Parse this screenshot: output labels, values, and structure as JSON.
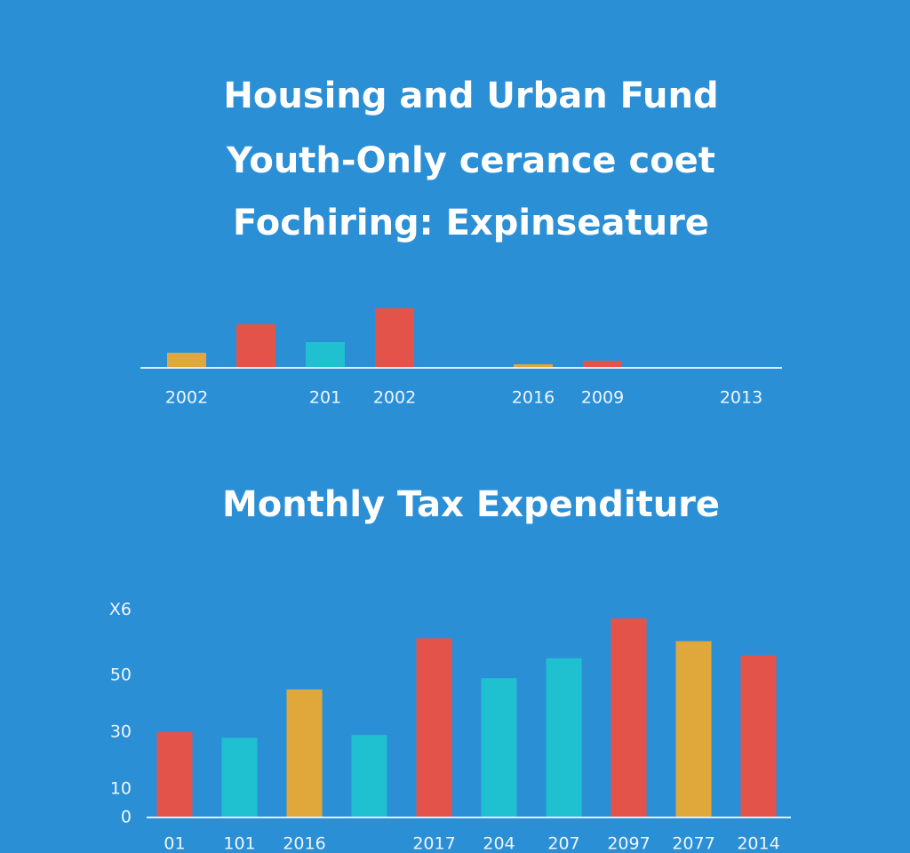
{
  "chart_data": [
    {
      "type": "bar",
      "title": [
        "Housing and Urban Fund",
        "Youth-Only cerance coet",
        "Fochiring: Expinseature"
      ],
      "categories": [
        "2002",
        null,
        "201",
        "2002",
        null,
        "2016",
        "2009",
        null,
        "2013"
      ],
      "values": [
        17,
        49,
        29,
        67,
        null,
        4,
        8,
        null,
        null
      ],
      "colors": [
        "#e0a83a",
        "#e4534a",
        "#1fc0d0",
        "#e4534a",
        null,
        "#e0a83a",
        "#e4534a",
        null,
        null
      ],
      "ylim": [
        0,
        70
      ]
    },
    {
      "type": "bar",
      "title": "Monthly Tax Expenditure",
      "categories": [
        "01",
        "101",
        "2016",
        null,
        "2017",
        "204",
        "207",
        "2097",
        "2077",
        "2014"
      ],
      "values": [
        30,
        28,
        45,
        29,
        63,
        49,
        56,
        70,
        62,
        57
      ],
      "colors": [
        "#e4534a",
        "#1fc0d0",
        "#e0a83a",
        "#1fc0d0",
        "#e4534a",
        "#1fc0d0",
        "#1fc0d0",
        "#e4534a",
        "#e0a83a",
        "#e4534a"
      ],
      "ylim": [
        0,
        75
      ],
      "yticks": [
        0,
        10,
        30,
        50,
        {
          "value": 73,
          "label": "X6"
        }
      ]
    }
  ]
}
